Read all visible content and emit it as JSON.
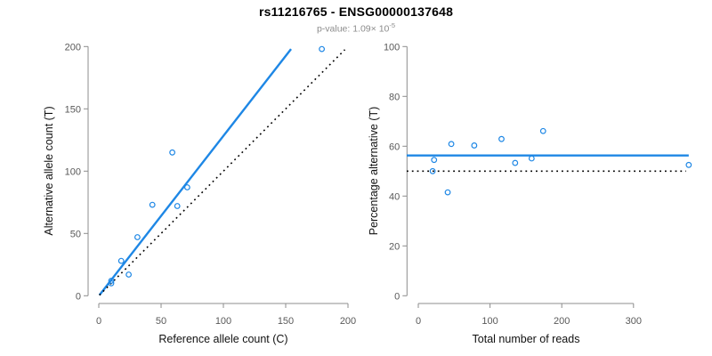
{
  "header": {
    "title": "rs11216765 - ENSG00000137648",
    "subtitle_prefix": "p-value: 1.09× 10",
    "subtitle_exponent": "-5"
  },
  "colors": {
    "accent_blue": "#1E87E5",
    "dotted_line_black": "#000000",
    "axis_line_gray": "#8c8c8c",
    "tick_label_gray": "#595959",
    "axis_title_black": "#111111",
    "subtitle_gray": "#8c8c8c"
  },
  "chart_data": [
    {
      "type": "scatter",
      "name": "allele-counts-panel",
      "xlabel": "Reference allele count (C)",
      "ylabel": "Alternative allele count (T)",
      "xlim": [
        0,
        200
      ],
      "ylim": [
        0,
        200
      ],
      "xticks": [
        0,
        50,
        100,
        150,
        200
      ],
      "yticks": [
        0,
        50,
        100,
        150,
        200
      ],
      "grid": false,
      "legend": false,
      "points": [
        [
          10,
          10
        ],
        [
          10,
          12
        ],
        [
          24,
          17
        ],
        [
          18,
          28
        ],
        [
          31,
          47
        ],
        [
          43,
          73
        ],
        [
          63,
          72
        ],
        [
          71,
          87
        ],
        [
          59,
          115
        ],
        [
          179,
          198
        ]
      ],
      "fit_line": {
        "x1": 0.5,
        "y1": 0.5,
        "x2": 154.3,
        "y2": 198.0,
        "style": "solid-blue"
      },
      "identity_line": {
        "x1": 0.5,
        "y1": 0.5,
        "x2": 197.5,
        "y2": 197.5,
        "style": "dotted-black"
      }
    },
    {
      "type": "scatter",
      "name": "percentage-panel",
      "xlabel": "Total number of reads",
      "ylabel": "Percentage alternative (T)",
      "xlim": [
        0,
        377
      ],
      "ylim": [
        0,
        100
      ],
      "xticks": [
        0,
        100,
        200,
        300
      ],
      "yticks": [
        0,
        20,
        40,
        60,
        80,
        100
      ],
      "grid": false,
      "legend": false,
      "points": [
        [
          20,
          50.0
        ],
        [
          22,
          54.5
        ],
        [
          41,
          41.5
        ],
        [
          46,
          60.9
        ],
        [
          78,
          60.3
        ],
        [
          116,
          62.9
        ],
        [
          135,
          53.3
        ],
        [
          158,
          55.1
        ],
        [
          174,
          66.1
        ],
        [
          377,
          52.5
        ]
      ],
      "fit_line": {
        "value": 56.3,
        "style": "solid-blue"
      },
      "reference_line": {
        "value": 50,
        "style": "dotted-black"
      }
    }
  ]
}
